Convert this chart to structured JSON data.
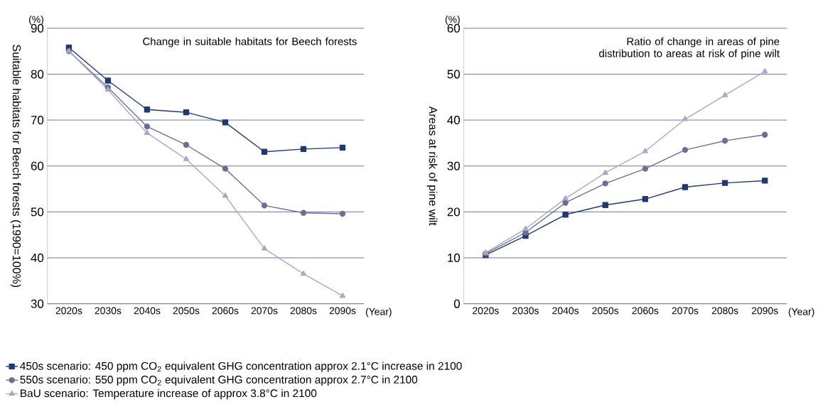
{
  "chart_data": [
    {
      "type": "line",
      "title": "Change in suitable habitats for Beech forests",
      "xlabel": "(Year)",
      "ylabel": "Suitable habitats for Beech forests (1990=100%)",
      "annotations": [
        "(%)"
      ],
      "categories": [
        "2020s",
        "2030s",
        "2040s",
        "2050s",
        "2060s",
        "2070s",
        "2080s",
        "2090s"
      ],
      "ylim": [
        30,
        90
      ],
      "yticks": [
        30,
        40,
        50,
        60,
        70,
        80,
        90
      ],
      "grid": "y",
      "legend": "bottom",
      "series": [
        {
          "name": "450s scenario: 450 ppm CO$_{2}$ equivalent GHG concentration approx 2.1°C increase in 2100",
          "color": "#1f3a6e",
          "marker": "square",
          "values": [
            85.8,
            78.6,
            72.3,
            71.7,
            69.5,
            63.1,
            63.7,
            64.0
          ]
        },
        {
          "name": "550s scenario: 550 ppm CO$_{2}$ equivalent GHG concentration approx 2.7°C in 2100",
          "color": "#6b6f93",
          "marker": "circle",
          "values": [
            85.0,
            77.1,
            68.6,
            64.6,
            59.4,
            51.4,
            49.8,
            49.6
          ]
        },
        {
          "name": "BaU scenario: Temperature increase of approx 3.8°C in 2100",
          "color": "#a8a9c8",
          "marker": "triangle",
          "values": [
            85.0,
            76.6,
            67.2,
            61.5,
            53.5,
            42.0,
            36.5,
            31.7
          ]
        }
      ]
    },
    {
      "type": "line",
      "title": "Ratio of change in areas of pine distribution to areas at risk of pine wilt",
      "xlabel": "(Year)",
      "ylabel": "Areas at risk of pine wilt",
      "annotations": [
        "(%)"
      ],
      "categories": [
        "2020s",
        "2030s",
        "2040s",
        "2050s",
        "2060s",
        "2070s",
        "2080s",
        "2090s"
      ],
      "ylim": [
        0,
        60
      ],
      "yticks": [
        0,
        10,
        20,
        30,
        40,
        50,
        60
      ],
      "grid": "y",
      "series": [
        {
          "color": "#1f3a6e",
          "marker": "square",
          "values": [
            10.6,
            14.8,
            19.4,
            21.5,
            22.8,
            25.4,
            26.3,
            26.8
          ]
        },
        {
          "color": "#6b6f93",
          "marker": "circle",
          "values": [
            10.9,
            15.5,
            22.0,
            26.2,
            29.4,
            33.5,
            35.5,
            36.8
          ]
        },
        {
          "color": "#a8a9c8",
          "marker": "triangle",
          "values": [
            11.1,
            16.3,
            22.9,
            28.5,
            33.2,
            40.2,
            45.4,
            50.6
          ]
        }
      ]
    }
  ]
}
